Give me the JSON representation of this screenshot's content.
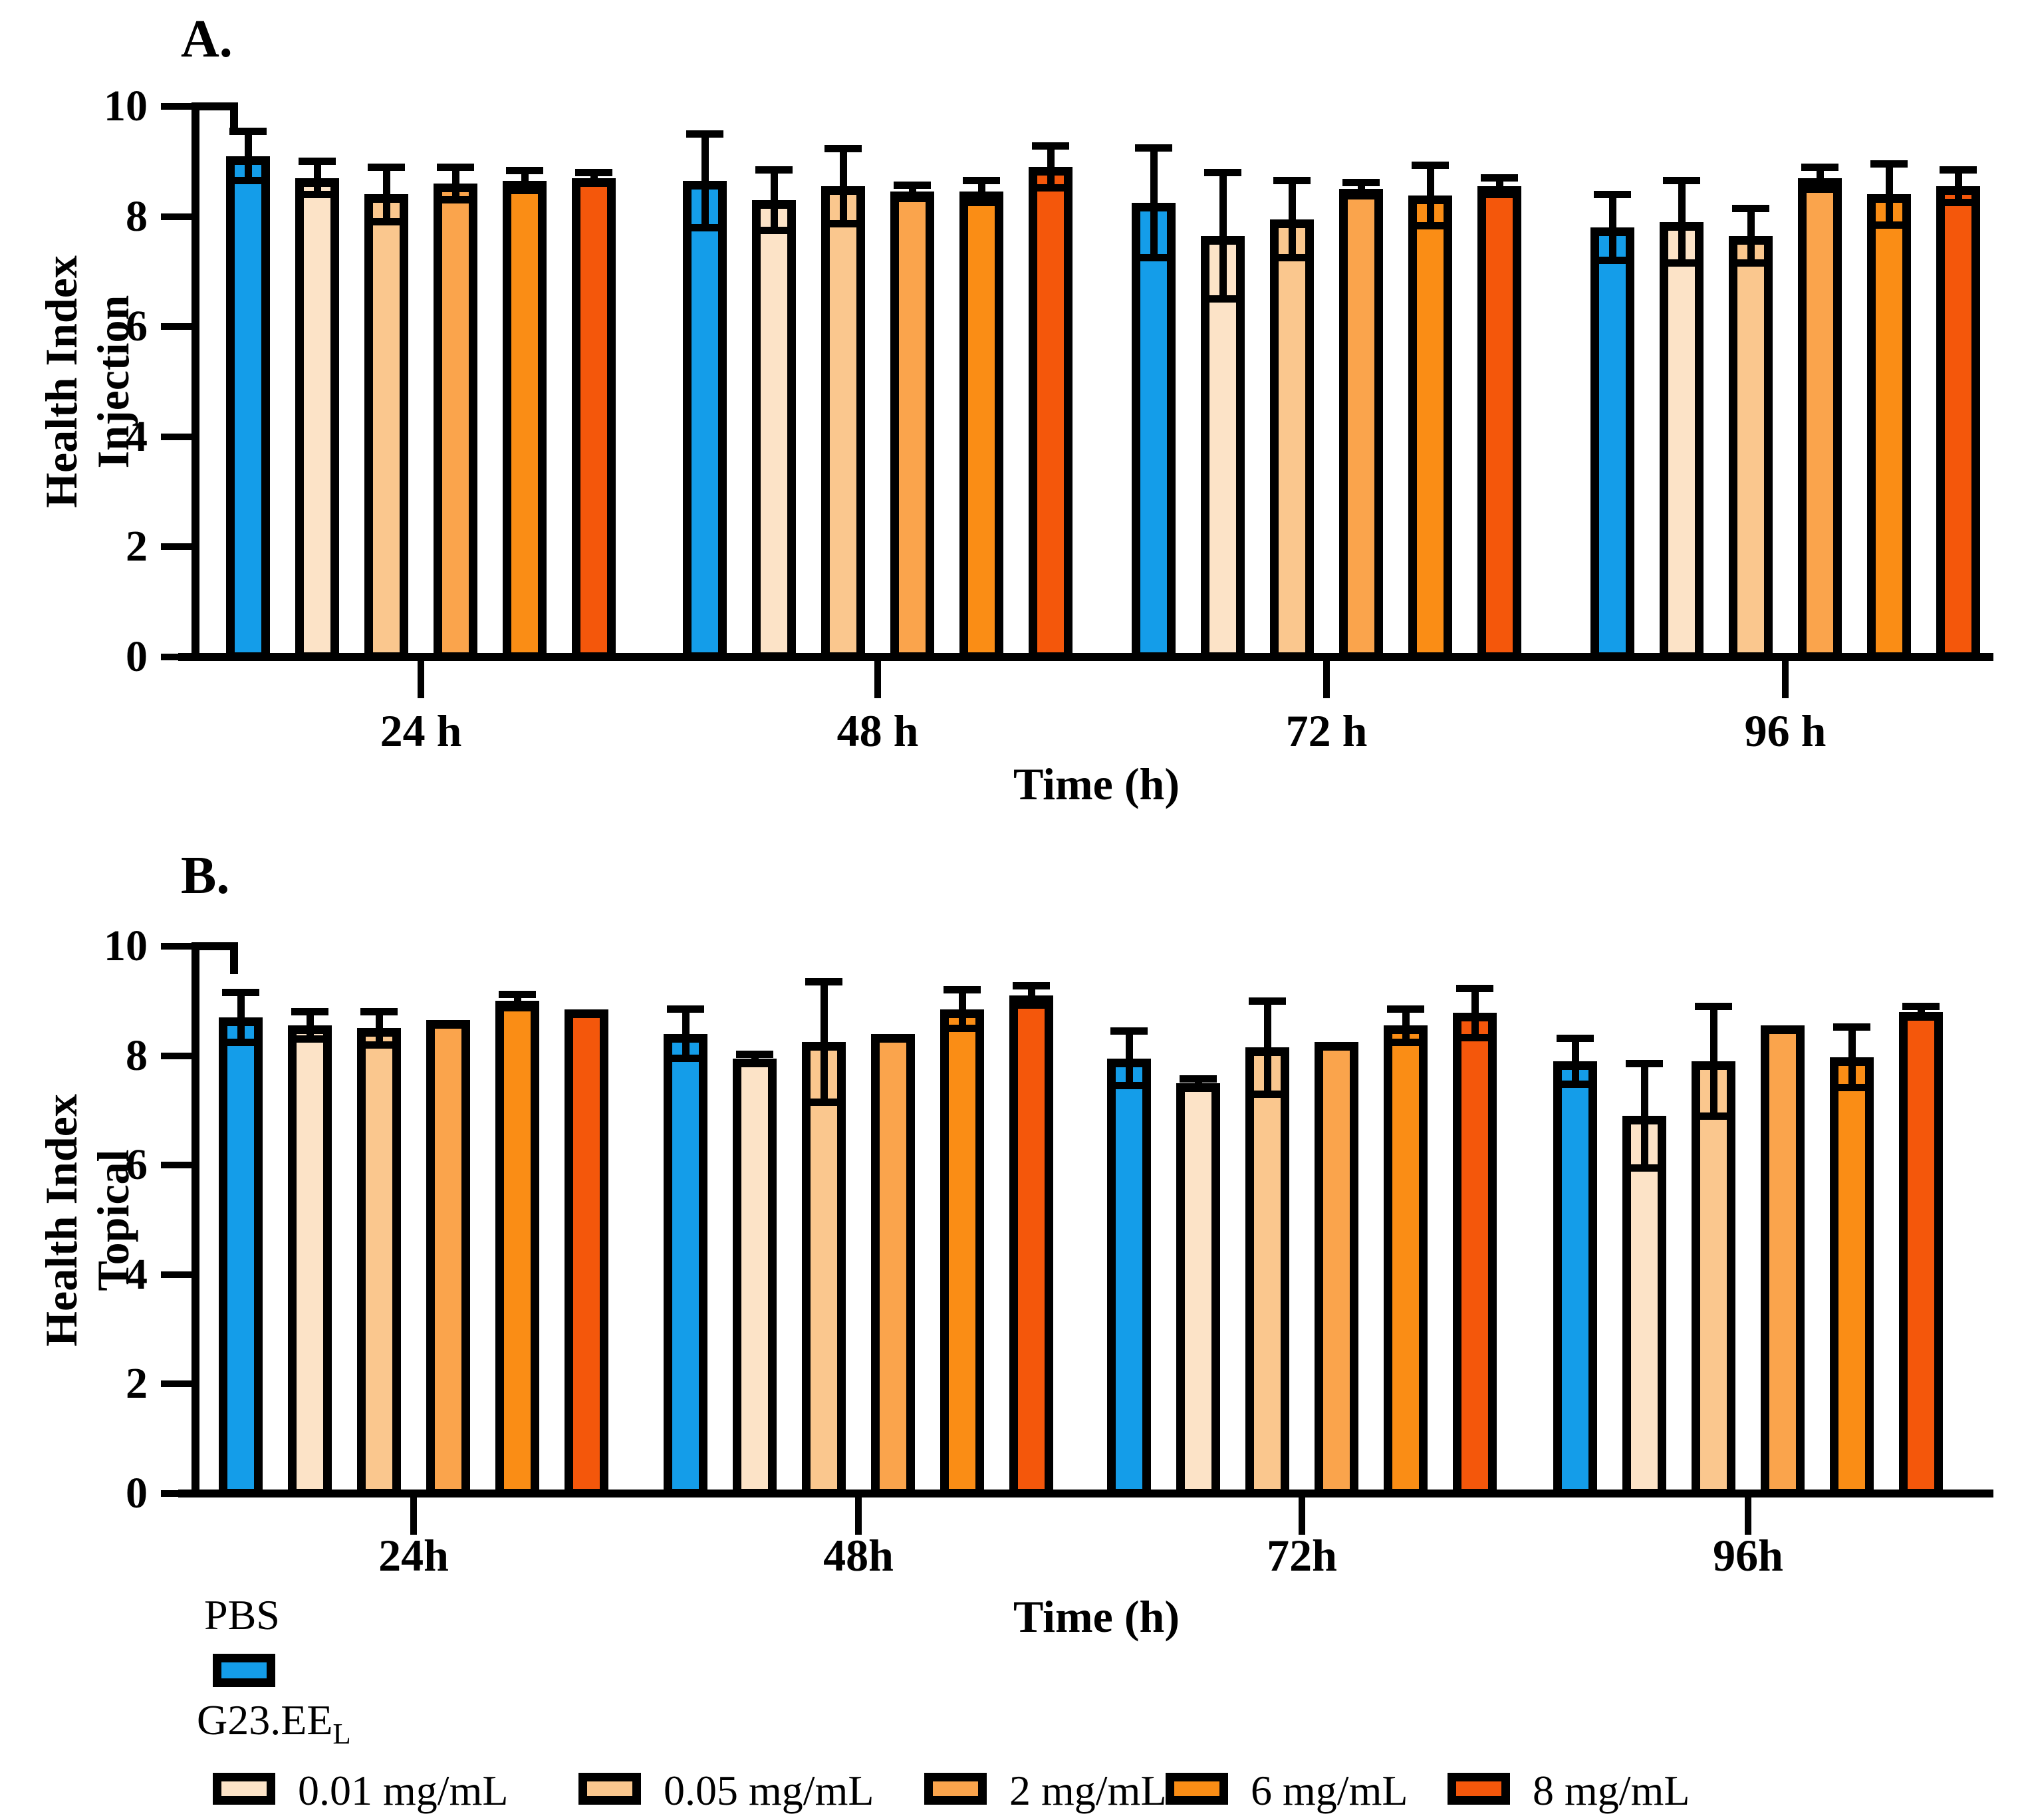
{
  "figure": {
    "panels": [
      {
        "label": "A.",
        "ylabel_lines": [
          "Health Index",
          "Injection"
        ],
        "xlabel": "Time (h)"
      },
      {
        "label": "B.",
        "ylabel_lines": [
          "Health Index",
          "Topical"
        ],
        "xlabel": "Time (h)"
      }
    ],
    "legend": {
      "pbs": {
        "label": "PBS",
        "color": "#149DE9"
      },
      "group_title": "G23.EE",
      "group_title_sub": "L",
      "items": [
        {
          "label": "0.01 mg/mL",
          "color": "#FCE3C7"
        },
        {
          "label": "0.05 mg/mL",
          "color": "#FAC78E"
        },
        {
          "label": "2 mg/mL",
          "color": "#FAA44C"
        },
        {
          "label": "6 mg/mL",
          "color": "#FA8D15"
        },
        {
          "label": "8 mg/mL",
          "color": "#F4570B"
        }
      ]
    }
  },
  "chart_data": [
    {
      "type": "bar",
      "title": "A.",
      "ylabel": "Health Index Injection",
      "ylabel_lines": [
        "Health Index",
        "Injection"
      ],
      "xlabel": "Time (h)",
      "categories": [
        "24 h",
        "48 h",
        "72 h",
        "96 h"
      ],
      "ylim": [
        0,
        10
      ],
      "yticks": [
        0,
        2,
        4,
        6,
        8,
        10
      ],
      "grid": false,
      "error_bars": "symmetric-sd",
      "series": [
        {
          "name": "PBS",
          "color": "#149DE9",
          "values": [
            9.1,
            8.65,
            8.25,
            7.8
          ],
          "errors": [
            0.45,
            0.85,
            1.0,
            0.6
          ]
        },
        {
          "name": "0.01 mg/mL",
          "color": "#FCE3C7",
          "values": [
            8.7,
            8.3,
            7.65,
            7.9
          ],
          "errors": [
            0.3,
            0.55,
            1.15,
            0.75
          ]
        },
        {
          "name": "0.05 mg/mL",
          "color": "#FAC78E",
          "values": [
            8.4,
            8.55,
            7.95,
            7.65
          ],
          "errors": [
            0.5,
            0.68,
            0.7,
            0.5
          ]
        },
        {
          "name": "2 mg/mL",
          "color": "#FAA44C",
          "values": [
            8.6,
            8.45,
            8.5,
            8.7
          ],
          "errors": [
            0.3,
            0.12,
            0.12,
            0.2
          ]
        },
        {
          "name": "6 mg/mL",
          "color": "#FA8D15",
          "values": [
            8.65,
            8.45,
            8.38,
            8.4
          ],
          "errors": [
            0.18,
            0.2,
            0.55,
            0.55
          ]
        },
        {
          "name": "8 mg/mL",
          "color": "#F4570B",
          "values": [
            8.7,
            8.9,
            8.55,
            8.55
          ],
          "errors": [
            0.1,
            0.38,
            0.15,
            0.3
          ]
        }
      ]
    },
    {
      "type": "bar",
      "title": "B.",
      "ylabel": "Health Index Topical",
      "ylabel_lines": [
        "Health Index",
        "Topical"
      ],
      "xlabel": "Time (h)",
      "categories": [
        "24h",
        "48h",
        "72h",
        "96h"
      ],
      "ylim": [
        0,
        10
      ],
      "yticks": [
        0,
        2,
        4,
        6,
        8,
        10
      ],
      "grid": false,
      "error_bars": "symmetric-sd",
      "series": [
        {
          "name": "PBS",
          "color": "#149DE9",
          "values": [
            8.7,
            8.4,
            7.95,
            7.9
          ],
          "errors": [
            0.45,
            0.45,
            0.5,
            0.42
          ]
        },
        {
          "name": "0.01 mg/mL",
          "color": "#FCE3C7",
          "values": [
            8.55,
            7.95,
            7.5,
            6.9
          ],
          "errors": [
            0.25,
            0.07,
            0.07,
            0.95
          ]
        },
        {
          "name": "0.05 mg/mL",
          "color": "#FAC78E",
          "values": [
            8.5,
            8.25,
            8.15,
            7.9
          ],
          "errors": [
            0.3,
            1.1,
            0.85,
            1.0
          ]
        },
        {
          "name": "2 mg/mL",
          "color": "#FAA44C",
          "values": [
            8.65,
            8.4,
            8.25,
            8.55
          ],
          "errors": [
            0,
            0,
            0,
            0
          ]
        },
        {
          "name": "6 mg/mL",
          "color": "#FA8D15",
          "values": [
            9.0,
            8.85,
            8.55,
            7.97
          ],
          "errors": [
            0.12,
            0.35,
            0.3,
            0.55
          ]
        },
        {
          "name": "8 mg/mL",
          "color": "#F4570B",
          "values": [
            8.85,
            9.1,
            8.78,
            8.8
          ],
          "errors": [
            0,
            0.18,
            0.45,
            0.1
          ]
        }
      ]
    }
  ]
}
